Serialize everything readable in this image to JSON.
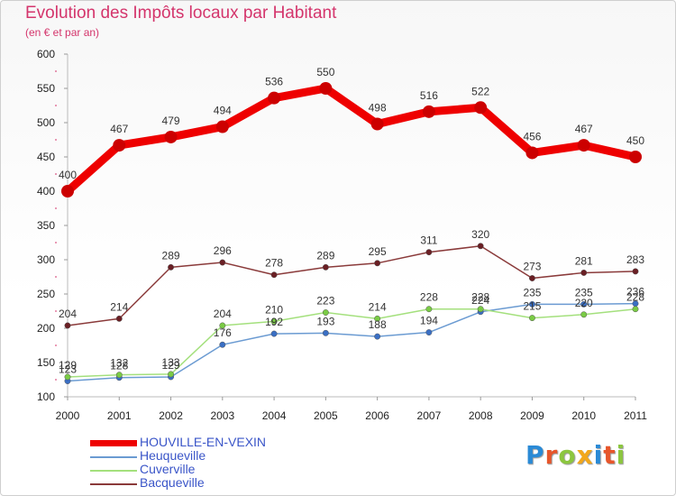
{
  "header": {
    "title": "Evolution des Impôts locaux par Habitant",
    "subtitle": "(en € et par an)"
  },
  "logo": {
    "text": "Proxiti",
    "colors": [
      "#2a8ad6",
      "#e7562b",
      "#8cc63f",
      "#f2a71b",
      "#2a8ad6",
      "#e7562b",
      "#8cc63f"
    ]
  },
  "chart_data": {
    "type": "line",
    "title": "Evolution des Impôts locaux par Habitant",
    "subtitle": "(en € et par an)",
    "x": [
      2000,
      2001,
      2002,
      2003,
      2004,
      2005,
      2006,
      2007,
      2008,
      2009,
      2010,
      2011
    ],
    "xlabel": "",
    "ylabel": "",
    "ylim": [
      100,
      600
    ],
    "yticks": [
      100,
      150,
      200,
      250,
      300,
      350,
      400,
      450,
      500,
      550,
      600
    ],
    "grid": false,
    "legend": "bottom-left",
    "series": [
      {
        "name": "HOUVILLE-EN-VEXIN",
        "color": "#ee0000",
        "point_color": "#cc0000",
        "width": 9,
        "values": [
          400,
          467,
          479,
          494,
          536,
          550,
          498,
          516,
          522,
          456,
          467,
          450
        ]
      },
      {
        "name": "Heuqueville",
        "color": "#6b9bd2",
        "point_color": "#3a6fc4",
        "width": 1.5,
        "values": [
          123,
          128,
          129,
          176,
          192,
          193,
          188,
          194,
          224,
          235,
          235,
          236
        ]
      },
      {
        "name": "Cuverville",
        "color": "#a4e07d",
        "point_color": "#7acb45",
        "width": 1.5,
        "values": [
          129,
          132,
          133,
          204,
          210,
          223,
          214,
          228,
          228,
          215,
          220,
          228
        ]
      },
      {
        "name": "Bacqueville",
        "color": "#8a3a3a",
        "point_color": "#6a1f24",
        "width": 1.5,
        "values": [
          204,
          214,
          289,
          296,
          278,
          289,
          295,
          311,
          320,
          273,
          281,
          283
        ]
      }
    ]
  }
}
